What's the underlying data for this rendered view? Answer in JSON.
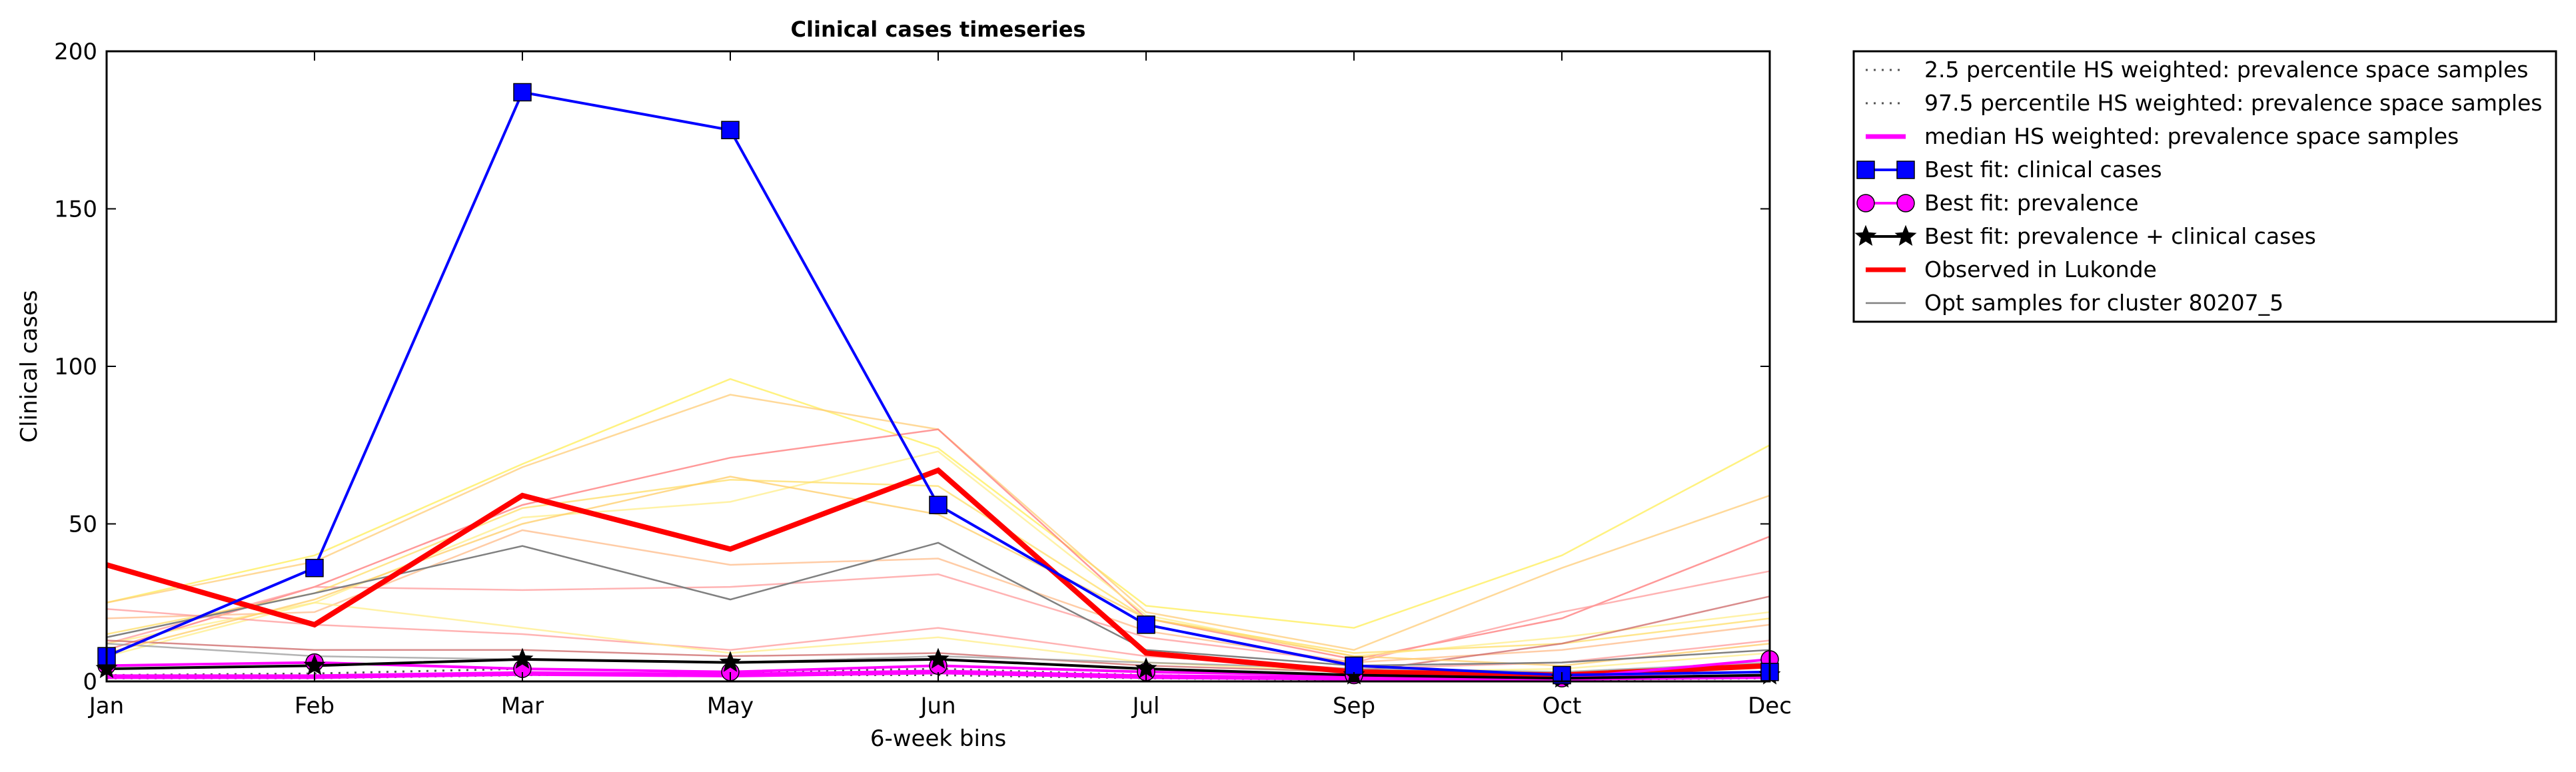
{
  "chart_data": {
    "type": "line",
    "title": "Clinical cases timeseries",
    "xlabel": "6-week bins",
    "ylabel": "Clinical cases",
    "categories": [
      "Jan",
      "Feb",
      "Mar",
      "May",
      "Jun",
      "Jul",
      "Sep",
      "Oct",
      "Dec"
    ],
    "ylim": [
      0,
      200
    ],
    "yticks": [
      0,
      50,
      100,
      150,
      200
    ],
    "grid": false,
    "legend_position": "outside-right-top",
    "series": [
      {
        "name": "2.5 percentile HS weighted: prevalence space samples",
        "style": "dotted",
        "color": "#555555",
        "values": [
          1,
          1,
          2,
          2,
          2,
          1,
          0.5,
          0.5,
          1
        ]
      },
      {
        "name": "97.5 percentile HS weighted: prevalence space samples",
        "style": "dotted",
        "color": "#555555",
        "values": [
          2,
          2.5,
          4,
          3,
          4,
          2,
          1,
          1,
          2
        ]
      },
      {
        "name": "median HS weighted: prevalence space samples",
        "style": "solid",
        "color": "#ff00ff",
        "values": [
          1.5,
          1.5,
          2.5,
          2,
          3,
          1.5,
          1,
          1,
          1.5
        ]
      },
      {
        "name": "Best fit: clinical cases",
        "style": "solid",
        "marker": "square",
        "color": "#0000ff",
        "values": [
          8,
          36,
          187,
          175,
          56,
          18,
          5,
          2,
          3
        ]
      },
      {
        "name": "Best fit: prevalence",
        "style": "solid",
        "marker": "circle",
        "color": "#ff00ff",
        "values": [
          5,
          6,
          4,
          3,
          5,
          3,
          2,
          1,
          7
        ]
      },
      {
        "name": "Best fit: prevalence + clinical cases",
        "style": "solid",
        "marker": "star",
        "color": "#000000",
        "values": [
          4,
          5,
          7,
          6,
          7,
          4,
          2,
          1,
          2
        ]
      },
      {
        "name": "Observed in Lukonde",
        "style": "solid",
        "color": "#ff0000",
        "values": [
          37,
          18,
          59,
          42,
          67,
          9,
          3,
          2,
          5
        ]
      },
      {
        "name": "Opt samples for cluster 80207_5",
        "style": "solid",
        "color": "#808080",
        "values": [
          14,
          28,
          43,
          26,
          44,
          10,
          5,
          6,
          10
        ]
      }
    ],
    "sample_lines": [
      {
        "color": "#ffee55",
        "values": [
          25,
          40,
          69,
          96,
          74,
          24,
          17,
          40,
          75
        ]
      },
      {
        "color": "#ffcc77",
        "values": [
          25,
          38,
          68,
          91,
          80,
          22,
          10,
          36,
          59
        ]
      },
      {
        "color": "#ff7777",
        "values": [
          10,
          30,
          56,
          71,
          80,
          20,
          7,
          20,
          46
        ]
      },
      {
        "color": "#ff9999",
        "values": [
          12,
          30,
          29,
          30,
          34,
          14,
          6,
          22,
          35
        ]
      },
      {
        "color": "#ffee88",
        "values": [
          8,
          25,
          52,
          57,
          73,
          21,
          8,
          14,
          22
        ]
      },
      {
        "color": "#ffdd66",
        "values": [
          15,
          28,
          55,
          64,
          62,
          20,
          9,
          12,
          20
        ]
      },
      {
        "color": "#ffbb88",
        "values": [
          20,
          22,
          48,
          37,
          39,
          16,
          6,
          10,
          18
        ]
      },
      {
        "color": "#ff9999",
        "values": [
          23,
          18,
          15,
          10,
          17,
          8,
          4,
          6,
          13
        ]
      },
      {
        "color": "#ffee88",
        "values": [
          12,
          25,
          17,
          9,
          14,
          6,
          3,
          4,
          9
        ]
      },
      {
        "color": "#cc6666",
        "values": [
          13,
          10,
          10,
          8,
          9,
          5,
          3,
          12,
          27
        ]
      },
      {
        "color": "#999999",
        "values": [
          12,
          8,
          7,
          6,
          8,
          6,
          4,
          3,
          6
        ]
      },
      {
        "color": "#ffcc66",
        "values": [
          9,
          26,
          50,
          65,
          53,
          20,
          8,
          5,
          12
        ]
      }
    ]
  }
}
